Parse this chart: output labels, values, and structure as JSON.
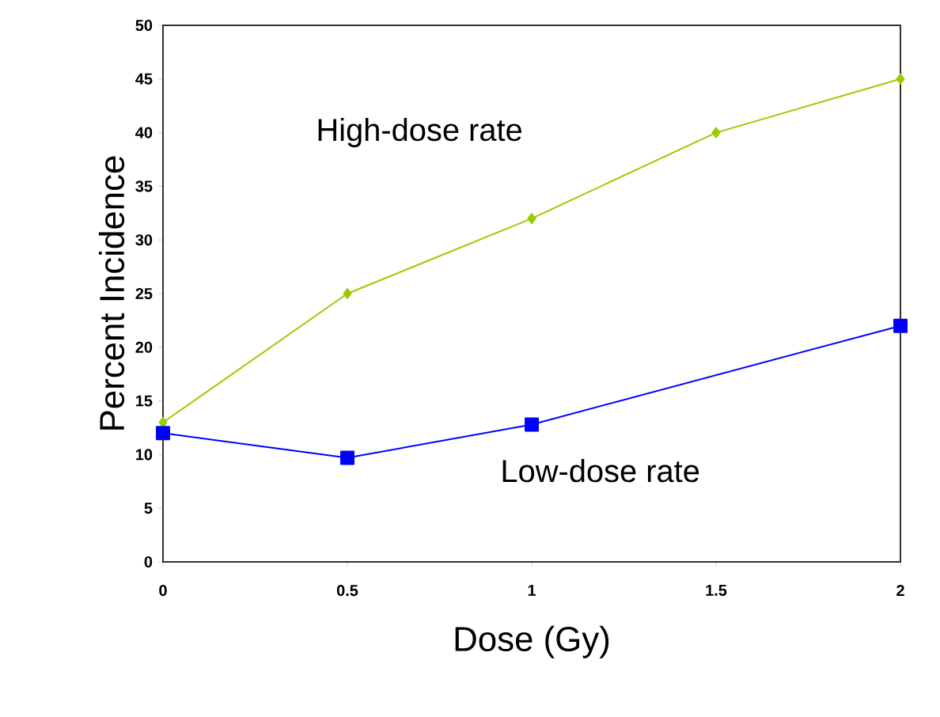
{
  "chart_data": {
    "type": "line",
    "xlabel": "Dose (Gy)",
    "ylabel": "Percent Incidence",
    "xlim": [
      0,
      2
    ],
    "xticks": [
      0,
      0.5,
      1,
      1.5,
      2
    ],
    "ylim": [
      0,
      50
    ],
    "yticks": [
      0,
      5,
      10,
      15,
      20,
      25,
      30,
      35,
      40,
      45,
      50
    ],
    "grid": false,
    "legend": false,
    "series": [
      {
        "name": "High-dose rate",
        "color": "#99cc00",
        "marker": "diamond",
        "x": [
          0,
          0.5,
          1,
          1.5,
          2
        ],
        "values": [
          13,
          25,
          32,
          40,
          45
        ]
      },
      {
        "name": "Low-dose rate",
        "color": "#0000ff",
        "marker": "square",
        "x": [
          0,
          0.5,
          1,
          2
        ],
        "values": [
          12,
          9.7,
          12.8,
          22
        ]
      }
    ]
  }
}
